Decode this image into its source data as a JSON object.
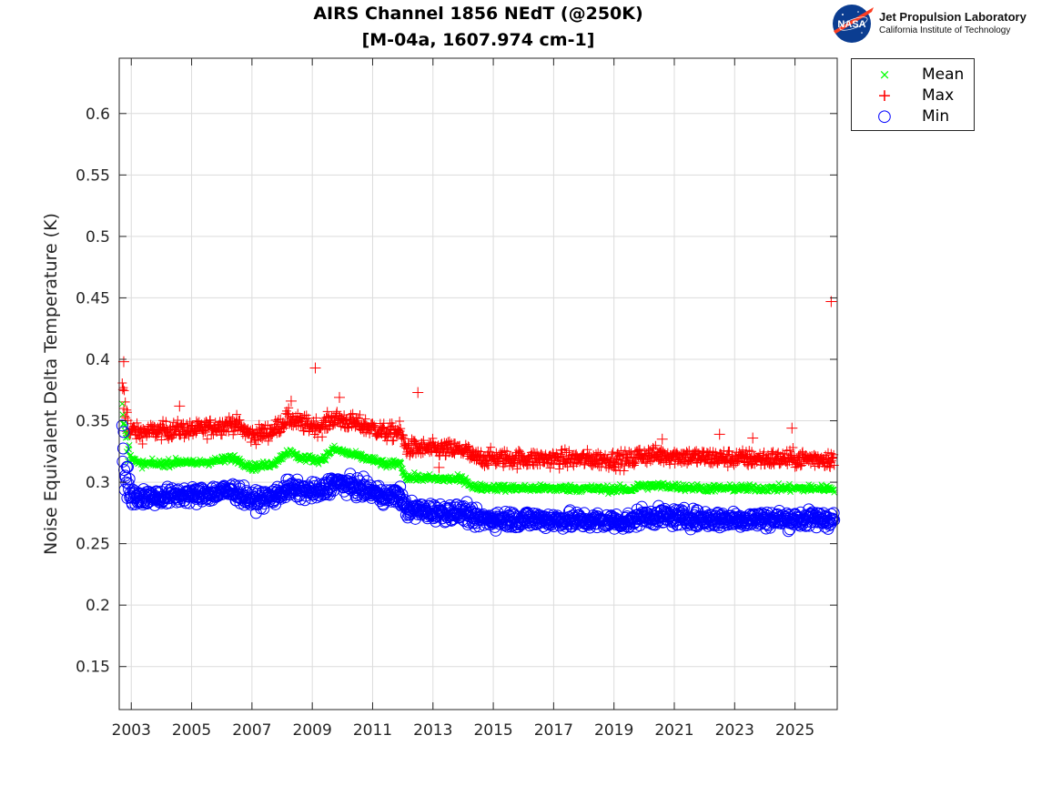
{
  "chart_data": {
    "type": "scatter",
    "title": "AIRS Channel 1856 NEdT (@250K)",
    "subtitle": "[M-04a, 1607.974 cm-1]",
    "xlabel": "",
    "ylabel": "Noise Equivalent Delta Temperature (K)",
    "xlim": [
      2002.6,
      2026.4
    ],
    "ylim": [
      0.115,
      0.645
    ],
    "xticks": [
      2003,
      2005,
      2007,
      2009,
      2011,
      2013,
      2015,
      2017,
      2019,
      2021,
      2023,
      2025
    ],
    "xtick_labels": [
      "2003",
      "2005",
      "2007",
      "2009",
      "2011",
      "2013",
      "2015",
      "2017",
      "2019",
      "2021",
      "2023",
      "2025"
    ],
    "yticks": [
      0.15,
      0.2,
      0.25,
      0.3,
      0.35,
      0.4,
      0.45,
      0.5,
      0.55,
      0.6
    ],
    "ytick_labels": [
      "0.15",
      "0.2",
      "0.25",
      "0.3",
      "0.35",
      "0.4",
      "0.45",
      "0.5",
      "0.55",
      "0.6"
    ],
    "grid": true,
    "legend_position": "outside-top-right",
    "series": [
      {
        "name": "Mean",
        "marker": "x",
        "color": "#00ff00",
        "trend": {
          "x": [
            2002.7,
            2002.9,
            2003.2,
            2004.0,
            2004.8,
            2005.0,
            2006.0,
            2006.4,
            2007.0,
            2007.7,
            2008.2,
            2008.6,
            2009.3,
            2009.7,
            2010.4,
            2011.0,
            2011.5,
            2011.9,
            2012.1,
            2013.0,
            2014.1,
            2014.3,
            2016.0,
            2017.5,
            2019.6,
            2019.8,
            2020.6,
            2022.0,
            2024.0,
            2026.3
          ],
          "y": [
            0.355,
            0.325,
            0.315,
            0.315,
            0.317,
            0.315,
            0.318,
            0.32,
            0.312,
            0.315,
            0.325,
            0.32,
            0.318,
            0.327,
            0.322,
            0.318,
            0.314,
            0.316,
            0.304,
            0.303,
            0.302,
            0.296,
            0.295,
            0.295,
            0.294,
            0.297,
            0.297,
            0.295,
            0.295,
            0.295
          ]
        },
        "spread": 0.003
      },
      {
        "name": "Max",
        "marker": "+",
        "color": "#ff0000",
        "trend": {
          "x": [
            2002.7,
            2002.9,
            2003.2,
            2004.0,
            2004.8,
            2005.0,
            2006.0,
            2006.4,
            2007.0,
            2007.7,
            2008.2,
            2008.6,
            2009.3,
            2009.7,
            2010.4,
            2011.0,
            2011.5,
            2011.9,
            2012.1,
            2013.0,
            2014.1,
            2014.3,
            2016.0,
            2017.5,
            2019.6,
            2019.8,
            2020.6,
            2022.0,
            2024.0,
            2026.3
          ],
          "y": [
            0.37,
            0.345,
            0.34,
            0.342,
            0.343,
            0.342,
            0.346,
            0.348,
            0.338,
            0.342,
            0.352,
            0.348,
            0.345,
            0.352,
            0.348,
            0.344,
            0.34,
            0.342,
            0.328,
            0.327,
            0.326,
            0.32,
            0.319,
            0.319,
            0.318,
            0.322,
            0.322,
            0.32,
            0.319,
            0.319
          ]
        },
        "spread": 0.007,
        "outliers": [
          [
            2002.75,
            0.398
          ],
          [
            2009.1,
            0.393
          ],
          [
            2012.5,
            0.373
          ],
          [
            2004.6,
            0.362
          ],
          [
            2008.3,
            0.366
          ],
          [
            2009.9,
            0.369
          ],
          [
            2013.2,
            0.312
          ],
          [
            2022.5,
            0.339
          ],
          [
            2023.6,
            0.336
          ],
          [
            2024.9,
            0.344
          ],
          [
            2026.2,
            0.447
          ],
          [
            2020.6,
            0.335
          ]
        ]
      },
      {
        "name": "Min",
        "marker": "o",
        "color": "#0000ff",
        "trend": {
          "x": [
            2002.7,
            2002.9,
            2003.2,
            2004.0,
            2004.8,
            2005.0,
            2006.0,
            2006.4,
            2007.0,
            2007.7,
            2008.2,
            2008.6,
            2009.3,
            2009.7,
            2010.4,
            2011.0,
            2011.5,
            2011.9,
            2012.1,
            2013.0,
            2014.1,
            2014.3,
            2016.0,
            2017.5,
            2019.6,
            2019.8,
            2020.6,
            2022.0,
            2024.0,
            2026.3
          ],
          "y": [
            0.33,
            0.29,
            0.288,
            0.288,
            0.29,
            0.289,
            0.292,
            0.293,
            0.285,
            0.288,
            0.295,
            0.293,
            0.292,
            0.3,
            0.296,
            0.292,
            0.288,
            0.29,
            0.278,
            0.276,
            0.275,
            0.27,
            0.27,
            0.269,
            0.268,
            0.272,
            0.272,
            0.27,
            0.27,
            0.27
          ]
        },
        "spread": 0.007
      }
    ]
  },
  "logo": {
    "badge_text": "NASA",
    "org_name": "Jet Propulsion Laboratory",
    "org_sub": "California Institute of Technology"
  },
  "legend": {
    "items": [
      {
        "label": "Mean",
        "symbol": "×",
        "color": "#00ff00"
      },
      {
        "label": "Max",
        "symbol": "+",
        "color": "#ff0000"
      },
      {
        "label": "Min",
        "symbol": "○",
        "color": "#0000ff"
      }
    ]
  }
}
